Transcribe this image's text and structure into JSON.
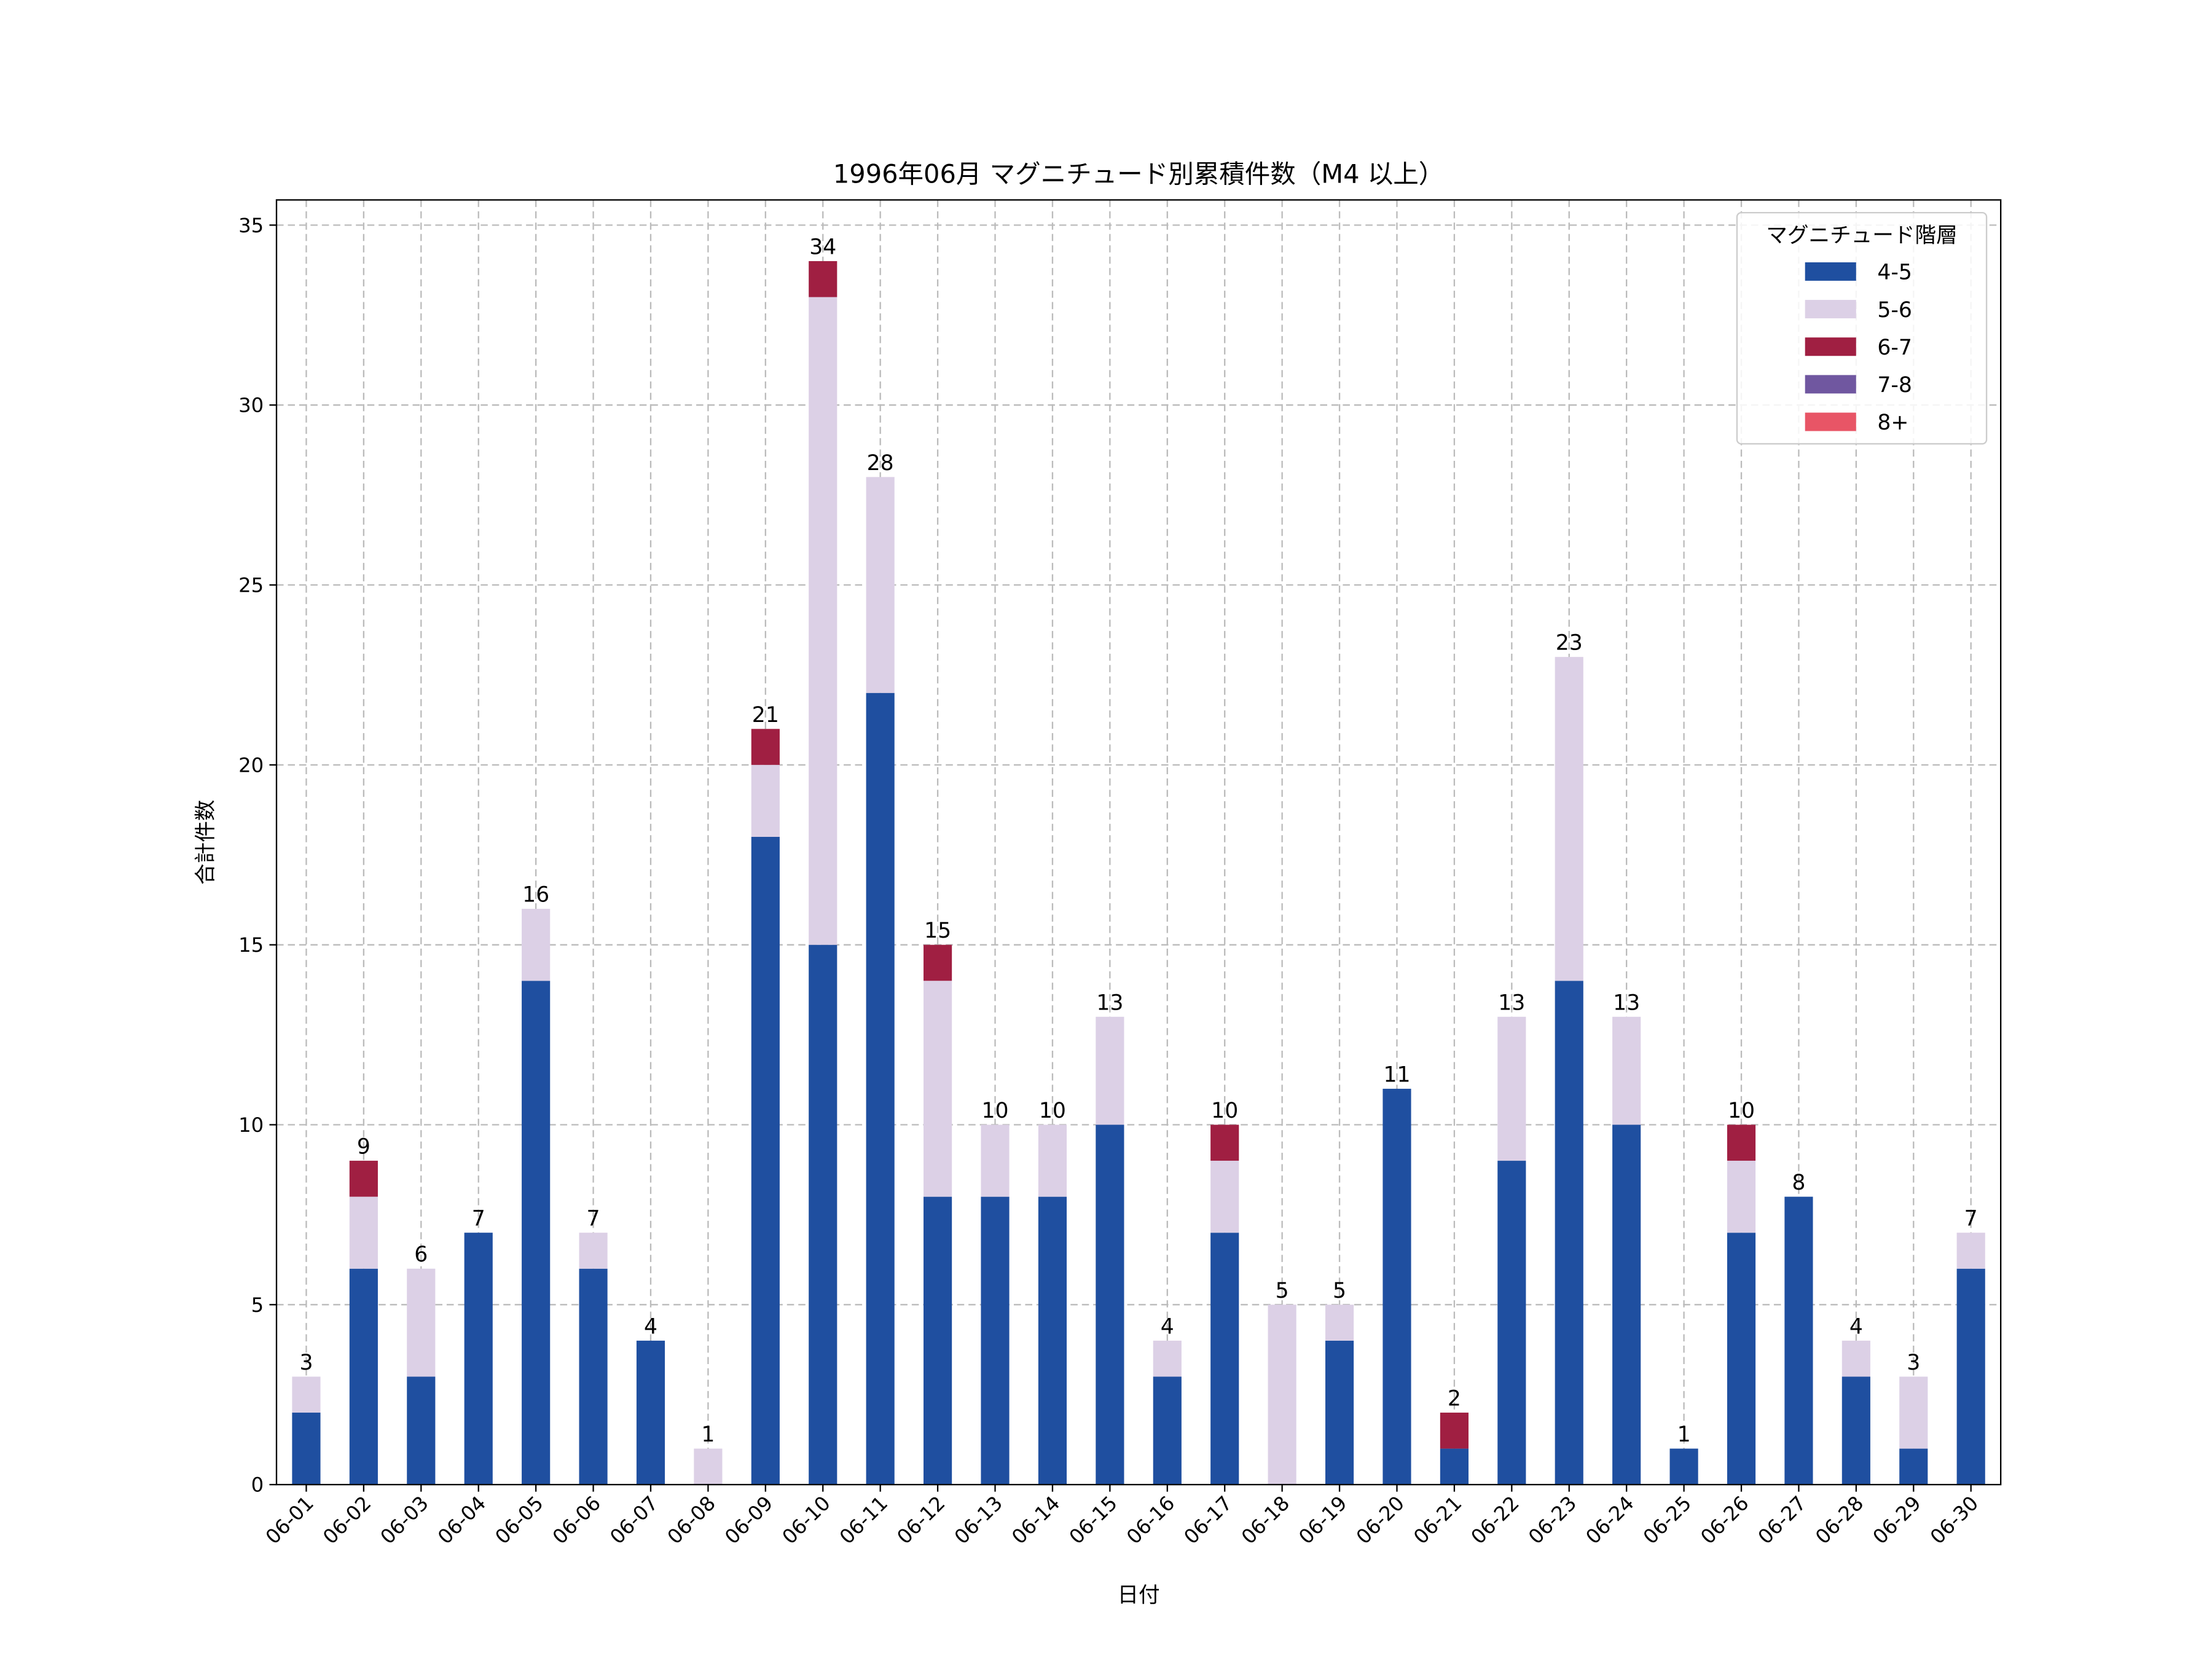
{
  "chart_data": {
    "type": "bar",
    "stacked": true,
    "title": "1996年06月 マグニチュード別累積件数（M4 以上）",
    "xlabel": "日付",
    "ylabel": "合計件数",
    "ylim": [
      0,
      35.7
    ],
    "yticks": [
      0,
      5,
      10,
      15,
      20,
      25,
      30,
      35
    ],
    "grid": true,
    "legend": {
      "title": "マグニチュード階層",
      "placement": "top-right"
    },
    "categories": [
      "06-01",
      "06-02",
      "06-03",
      "06-04",
      "06-05",
      "06-06",
      "06-07",
      "06-08",
      "06-09",
      "06-10",
      "06-11",
      "06-12",
      "06-13",
      "06-14",
      "06-15",
      "06-16",
      "06-17",
      "06-18",
      "06-19",
      "06-20",
      "06-21",
      "06-22",
      "06-23",
      "06-24",
      "06-25",
      "06-26",
      "06-27",
      "06-28",
      "06-29",
      "06-30"
    ],
    "series": [
      {
        "name": "4-5",
        "color": "#1f4fa0",
        "values": [
          2,
          6,
          3,
          7,
          14,
          6,
          4,
          0,
          18,
          15,
          22,
          8,
          8,
          8,
          10,
          3,
          7,
          0,
          4,
          11,
          1,
          9,
          14,
          10,
          1,
          7,
          8,
          3,
          1,
          6
        ]
      },
      {
        "name": "5-6",
        "color": "#dcd0e6",
        "values": [
          1,
          2,
          3,
          0,
          2,
          1,
          0,
          1,
          2,
          18,
          6,
          6,
          2,
          2,
          3,
          1,
          2,
          5,
          1,
          0,
          0,
          4,
          9,
          3,
          0,
          2,
          0,
          1,
          2,
          1
        ]
      },
      {
        "name": "6-7",
        "color": "#a01f42",
        "values": [
          0,
          1,
          0,
          0,
          0,
          0,
          0,
          0,
          1,
          1,
          0,
          1,
          0,
          0,
          0,
          0,
          1,
          0,
          0,
          0,
          1,
          0,
          0,
          0,
          0,
          1,
          0,
          0,
          0,
          0
        ]
      },
      {
        "name": "7-8",
        "color": "#7057a0",
        "values": [
          0,
          0,
          0,
          0,
          0,
          0,
          0,
          0,
          0,
          0,
          0,
          0,
          0,
          0,
          0,
          0,
          0,
          0,
          0,
          0,
          0,
          0,
          0,
          0,
          0,
          0,
          0,
          0,
          0,
          0
        ]
      },
      {
        "name": "8+",
        "color": "#e85566",
        "values": [
          0,
          0,
          0,
          0,
          0,
          0,
          0,
          0,
          0,
          0,
          0,
          0,
          0,
          0,
          0,
          0,
          0,
          0,
          0,
          0,
          0,
          0,
          0,
          0,
          0,
          0,
          0,
          0,
          0,
          0
        ]
      }
    ],
    "totals": [
      3,
      9,
      6,
      7,
      16,
      7,
      4,
      1,
      21,
      34,
      28,
      15,
      10,
      10,
      13,
      4,
      10,
      5,
      5,
      11,
      2,
      13,
      23,
      13,
      1,
      10,
      8,
      4,
      3,
      7
    ]
  }
}
